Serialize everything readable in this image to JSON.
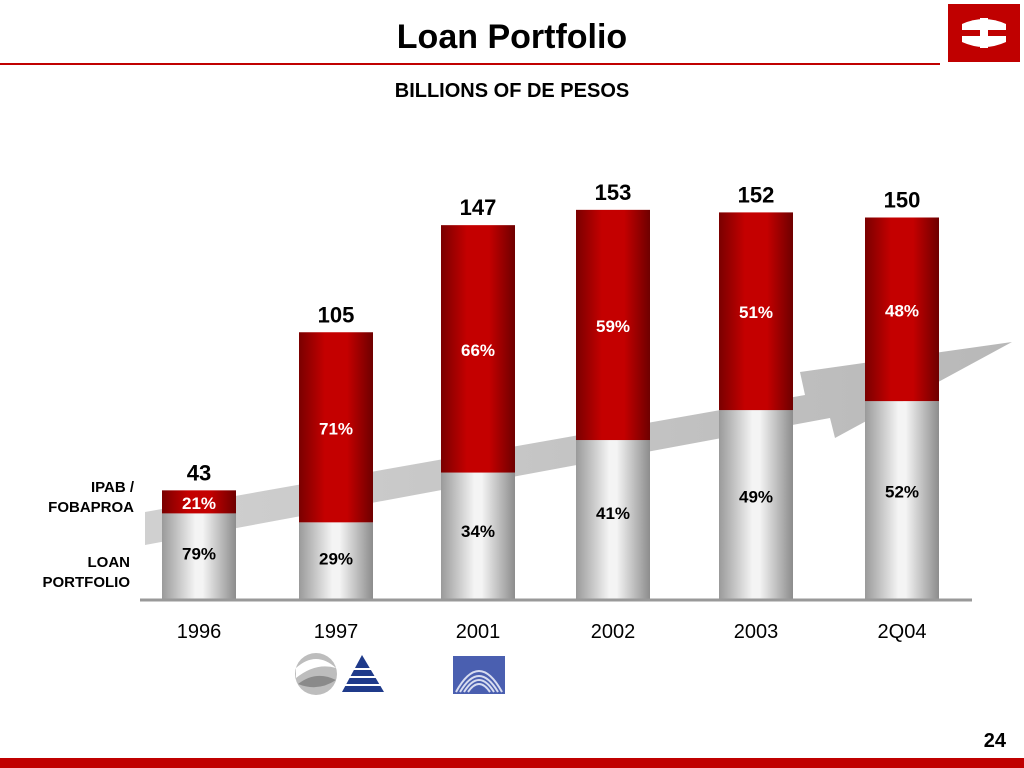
{
  "slide": {
    "title": "Loan Portfolio",
    "subtitle": "BILLIONS OF DE PESOS",
    "page_number": "24"
  },
  "legend": {
    "ipab_label_line1": "IPAB /",
    "ipab_label_line2": "FOBAPROA",
    "loan_label_line1": "LOAN",
    "loan_label_line2": "PORTFOLIO"
  },
  "colors": {
    "ipab": "#b50000",
    "loan": "#c8c8c8",
    "accent": "#c00000"
  },
  "chart_data": {
    "type": "bar",
    "stacked": true,
    "categories": [
      "1996",
      "1997",
      "2001",
      "2002",
      "2003",
      "2Q04"
    ],
    "totals": [
      43,
      105,
      147,
      153,
      152,
      150
    ],
    "series": [
      {
        "name": "LOAN PORTFOLIO",
        "percent_labels": [
          "79%",
          "29%",
          "34%",
          "41%",
          "49%",
          "52%"
        ],
        "percent_values": [
          79,
          29,
          34,
          41,
          49,
          52
        ]
      },
      {
        "name": "IPAB / FOBAPROA",
        "percent_labels": [
          "21%",
          "71%",
          "66%",
          "59%",
          "51%",
          "48%"
        ],
        "percent_values": [
          21,
          71,
          66,
          59,
          51,
          48
        ]
      }
    ],
    "ylim": [
      0,
      160
    ],
    "grid": false,
    "title": "",
    "xlabel": "",
    "ylabel": ""
  }
}
